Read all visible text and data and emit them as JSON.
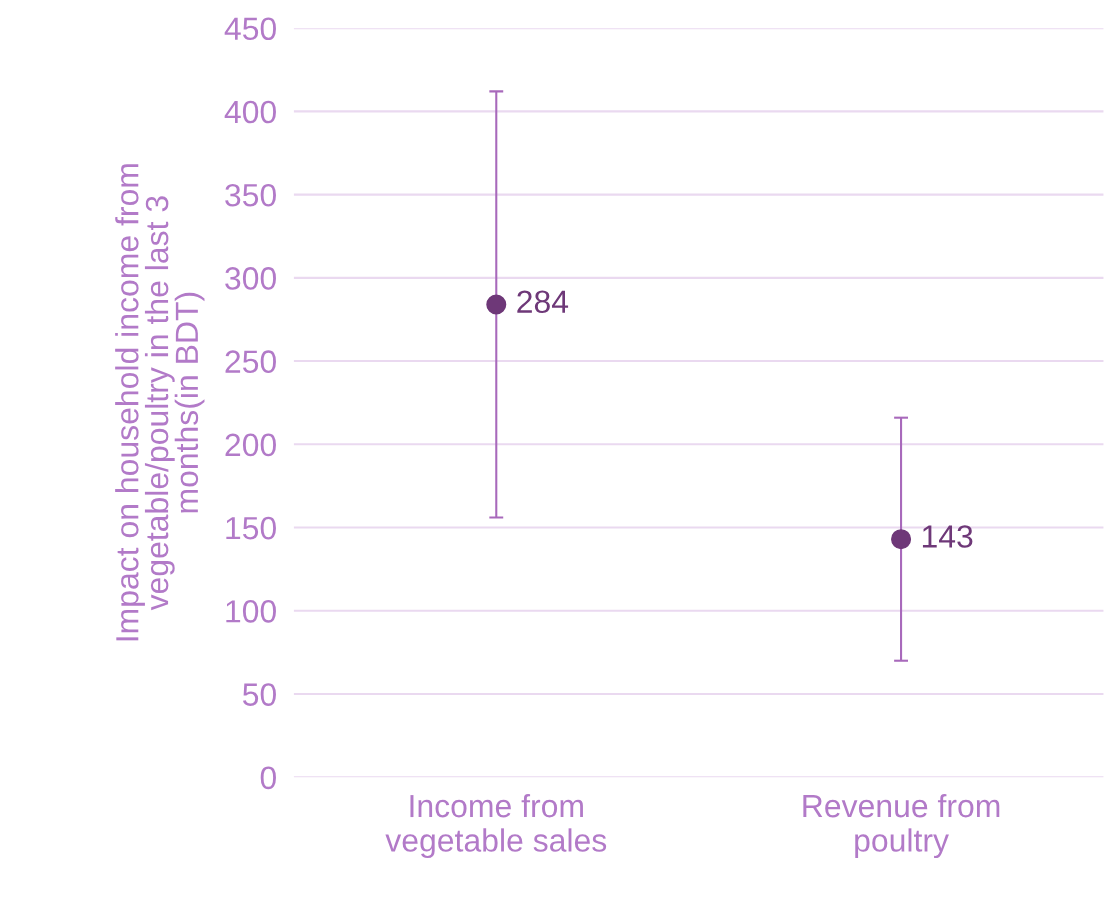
{
  "chart_data": {
    "type": "scatter",
    "ylabel": "Impact on household income from\nvegetable/poultry in the last 3\nmonths(in BDT)",
    "categories": [
      "Income from\nvegetable sales",
      "Revenue from\npoultry"
    ],
    "series": [
      {
        "color": "#6e3878",
        "values": [
          284,
          143
        ],
        "errors": [
          [
            156,
            412
          ],
          [
            70,
            216
          ]
        ]
      }
    ],
    "ylim": [
      0,
      450
    ],
    "yticks": [
      0,
      50,
      100,
      150,
      200,
      250,
      300,
      350,
      400,
      450
    ],
    "grid": "y",
    "marker": "circle",
    "data_labels": true
  }
}
